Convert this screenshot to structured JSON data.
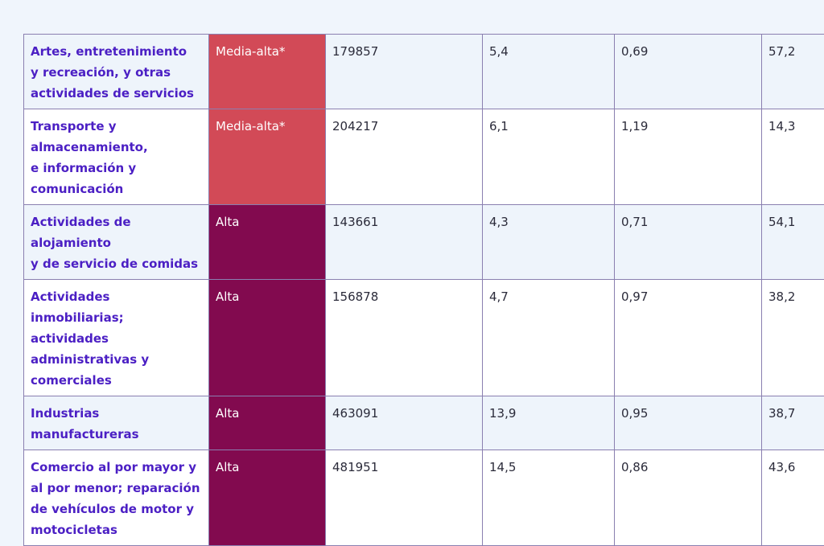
{
  "table": {
    "rows": [
      {
        "sector_lines": [
          "Artes, entretenimiento",
          "y recreación, y otras",
          "actividades de servicios"
        ],
        "level": "Media-alta*",
        "level_color": "#d24a57",
        "value": "179857",
        "pct": "5,4",
        "ratio": "0,69",
        "last": "57,2"
      },
      {
        "sector_lines": [
          "Transporte y",
          "almacenamiento,",
          "e información y",
          "comunicación"
        ],
        "level": "Media-alta*",
        "level_color": "#d24a57",
        "value": "204217",
        "pct": "6,1",
        "ratio": "1,19",
        "last": "14,3"
      },
      {
        "sector_lines": [
          "Actividades de alojamiento",
          "y de servicio de comidas"
        ],
        "level": "Alta",
        "level_color": "#820a4f",
        "value": "143661",
        "pct": "4,3",
        "ratio": "0,71",
        "last": "54,1"
      },
      {
        "sector_lines": [
          "Actividades",
          "inmobiliarias; actividades",
          "administrativas y",
          "comerciales"
        ],
        "level": "Alta",
        "level_color": "#820a4f",
        "value": "156878",
        "pct": "4,7",
        "ratio": "0,97",
        "last": "38,2"
      },
      {
        "sector_lines": [
          "Industrias manufactureras"
        ],
        "level": "Alta",
        "level_color": "#820a4f",
        "value": "463091",
        "pct": "13,9",
        "ratio": "0,95",
        "last": "38,7"
      },
      {
        "sector_lines": [
          "Comercio al por mayor y",
          "al por menor; reparación",
          "de vehículos de motor y",
          "motocicletas"
        ],
        "level": "Alta",
        "level_color": "#820a4f",
        "value": "481951",
        "pct": "14,5",
        "ratio": "0,86",
        "last": "43,6"
      }
    ]
  }
}
